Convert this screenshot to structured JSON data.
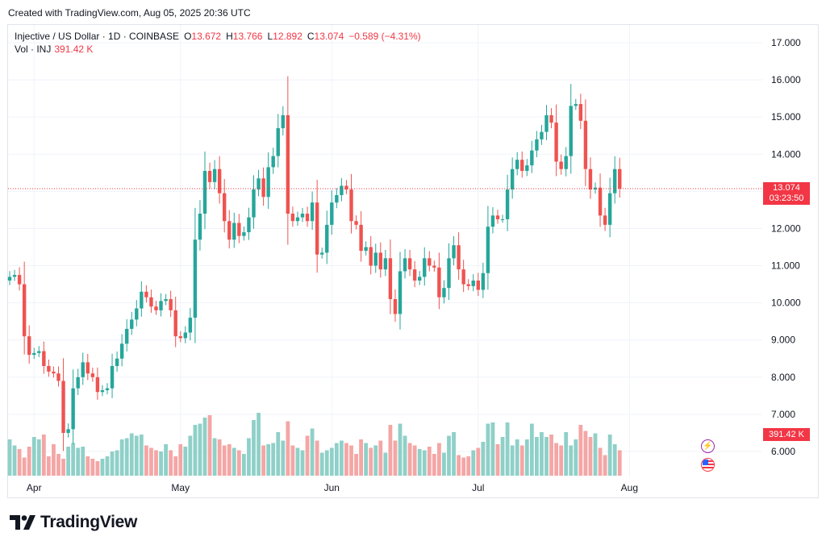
{
  "credit": "Created with TradingView.com, Aug 05, 2025 20:36 UTC",
  "legend": {
    "symbol": "Injective / US Dollar · 1D · COINBASE",
    "open_label": "O",
    "open": "13.672",
    "high_label": "H",
    "high": "13.766",
    "low_label": "L",
    "low": "12.892",
    "close_label": "C",
    "close": "13.074",
    "change": "−0.589 (−4.31%)",
    "volume_label": "Vol · INJ",
    "volume": "391.42 K"
  },
  "last_price_tag": {
    "price": "13.074",
    "countdown": "03:23:50"
  },
  "volume_tag": "391.42 K",
  "brand": "TradingView",
  "colors": {
    "up": "#26a69a",
    "down": "#ef5350",
    "up_vol": "#8fd0c8",
    "down_vol": "#f4a6a5",
    "grid": "#f0f3fa",
    "price_line": "#f23645"
  },
  "icons": {
    "flash": "lightning-icon",
    "flag": "us-flag-icon"
  },
  "chart_data": {
    "type": "candlestick",
    "title": "",
    "x_tick_labels": [
      {
        "label": "Apr",
        "date": "2025-04-01"
      },
      {
        "label": "May",
        "date": "2025-05-01"
      },
      {
        "label": "Jun",
        "date": "2025-06-01"
      },
      {
        "label": "Jul",
        "date": "2025-07-01"
      },
      {
        "label": "Aug",
        "date": "2025-08-01"
      }
    ],
    "y_tick_labels": [
      "6.000",
      "7.000",
      "8.000",
      "9.000",
      "10.000",
      "11.000",
      "12.000",
      "13.000",
      "14.000",
      "15.000",
      "16.000",
      "17.000"
    ],
    "ylim": [
      5.4,
      17.3
    ],
    "start_date": "2025-03-27",
    "closes": [
      10.7,
      10.75,
      10.5,
      9.1,
      8.6,
      8.65,
      8.7,
      8.3,
      8.15,
      8.1,
      7.9,
      6.5,
      6.6,
      7.7,
      8.0,
      8.4,
      8.1,
      8.0,
      7.6,
      7.65,
      7.7,
      8.3,
      8.5,
      8.9,
      9.3,
      9.55,
      9.85,
      10.3,
      10.15,
      9.9,
      9.8,
      10.05,
      10.1,
      9.8,
      9.1,
      9.05,
      9.2,
      9.6,
      11.7,
      12.4,
      13.55,
      13.25,
      13.6,
      12.95,
      12.2,
      11.7,
      12.15,
      11.8,
      11.9,
      12.3,
      13.05,
      13.35,
      12.85,
      13.65,
      13.95,
      14.7,
      15.05,
      12.4,
      12.2,
      12.3,
      12.4,
      12.2,
      12.7,
      11.3,
      11.35,
      12.1,
      12.7,
      12.9,
      13.15,
      13.05,
      12.2,
      12.1,
      11.4,
      11.5,
      11.0,
      11.35,
      10.9,
      11.2,
      10.1,
      9.7,
      10.85,
      11.2,
      10.9,
      10.6,
      10.7,
      11.2,
      11.0,
      10.95,
      10.15,
      10.4,
      11.2,
      11.55,
      10.9,
      10.5,
      10.45,
      10.6,
      10.35,
      10.8,
      12.05,
      12.35,
      12.25,
      12.25,
      13.05,
      13.6,
      13.85,
      13.55,
      13.7,
      14.1,
      14.4,
      14.6,
      15.05,
      14.85,
      13.8,
      13.6,
      13.95,
      15.3,
      15.35,
      14.9,
      13.6,
      13.05,
      13.1,
      12.35,
      12.1,
      12.95,
      13.6,
      13.074
    ],
    "volume_ylim": [
      0,
      10
    ],
    "volumes": [
      3.0,
      2.5,
      2.2,
      1.5,
      2.4,
      3.2,
      3.0,
      3.4,
      1.6,
      2.6,
      1.8,
      1.4,
      2.4,
      2.7,
      2.3,
      2.4,
      1.6,
      1.4,
      1.2,
      1.4,
      1.6,
      2.0,
      2.1,
      3.0,
      3.1,
      3.5,
      3.3,
      3.4,
      2.5,
      2.3,
      2.1,
      2.0,
      2.6,
      2.1,
      1.6,
      2.6,
      2.4,
      3.3,
      4.2,
      4.3,
      4.8,
      5.0,
      3.1,
      3.0,
      2.5,
      2.6,
      2.3,
      2.1,
      1.8,
      3.1,
      4.6,
      5.2,
      2.5,
      2.6,
      2.7,
      3.6,
      2.9,
      4.5,
      2.5,
      2.3,
      2.1,
      3.3,
      3.9,
      2.9,
      1.9,
      2.1,
      2.3,
      2.7,
      2.9,
      2.7,
      2.5,
      1.8,
      3.0,
      2.7,
      2.3,
      2.5,
      2.9,
      1.9,
      4.2,
      2.9,
      4.3,
      3.3,
      2.7,
      2.5,
      2.2,
      2.1,
      2.4,
      1.8,
      2.7,
      1.9,
      3.3,
      3.6,
      1.7,
      1.5,
      1.6,
      2.1,
      2.3,
      2.8,
      4.3,
      4.4,
      2.6,
      3.2,
      4.4,
      2.5,
      3.0,
      2.5,
      3.0,
      4.3,
      3.2,
      3.6,
      3.2,
      3.4,
      2.7,
      2.5,
      3.6,
      2.5,
      3.0,
      4.2,
      3.7,
      3.2,
      3.5,
      2.3,
      1.7,
      3.4,
      2.6,
      2.1
    ]
  }
}
